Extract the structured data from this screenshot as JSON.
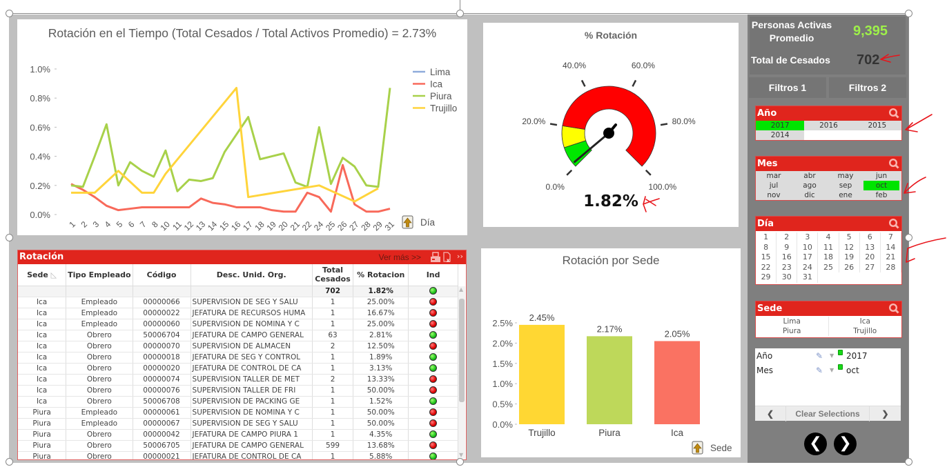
{
  "line_chart": {
    "title": "Rotación en el Tiempo (Total  Cesados / Total Activos Promedio) = 2.73%",
    "dimension_label": "Día",
    "colors": {
      "Lima": "#8eaadb",
      "Ica": "#f8695a",
      "Piura": "#a8d14a",
      "Trujillo": "#ffd43b"
    }
  },
  "gauge": {
    "title": "% Rotación",
    "value_label": "1.82%",
    "value_percent": 1.82,
    "tick_labels": [
      "0.0%",
      "20.0%",
      "40.0%",
      "60.0%",
      "80.0%",
      "100.0%"
    ],
    "bands": [
      {
        "from": 0,
        "to": 10,
        "color": "#00e800"
      },
      {
        "from": 10,
        "to": 20,
        "color": "#ffff00"
      },
      {
        "from": 20,
        "to": 100,
        "color": "#ff0000"
      }
    ]
  },
  "bar_chart": {
    "title": "Rotación por Sede",
    "dimension_label": "Sede",
    "colors": [
      "#ffd733",
      "#bed85a",
      "#fa7262"
    ]
  },
  "chart_data": [
    {
      "type": "line",
      "title": "Rotación en el Tiempo (Total  Cesados / Total Activos Promedio) = 2.73%",
      "xlabel": "Día",
      "ylabel": "",
      "ylim": [
        0,
        1.0
      ],
      "y_ticks": [
        "0.0%",
        "0.2%",
        "0.4%",
        "0.6%",
        "0.8%",
        "1.0%"
      ],
      "y_tick_values": [
        0,
        0.2,
        0.4,
        0.6,
        0.8,
        1.0
      ],
      "x": [
        "1",
        "2",
        "3",
        "4",
        "5",
        "6",
        "7",
        "8",
        "10",
        "11",
        "12",
        "13",
        "14",
        "15",
        "16",
        "17",
        "18",
        "19",
        "20",
        "21",
        "22",
        "24",
        "25",
        "26",
        "27",
        "28",
        "29",
        "31"
      ],
      "legend": [
        "Lima",
        "Ica",
        "Piura",
        "Trujillo"
      ],
      "legend_position": "top-right",
      "grid": false,
      "series": [
        {
          "name": "Lima",
          "values": [
            null,
            null,
            null,
            null,
            null,
            null,
            null,
            null,
            null,
            null,
            null,
            null,
            null,
            null,
            null,
            null,
            null,
            null,
            null,
            null,
            null,
            null,
            null,
            null,
            null,
            null,
            null,
            null
          ]
        },
        {
          "name": "Ica",
          "values": [
            0.21,
            0.17,
            0.12,
            0.06,
            0.03,
            0.04,
            0.05,
            0.05,
            0.05,
            0.05,
            0.05,
            0.11,
            0.08,
            0.07,
            0.05,
            0.05,
            0.05,
            0.03,
            0.02,
            0.02,
            0.15,
            0.12,
            0.02,
            0.34,
            0.07,
            0.02,
            0.02,
            0.04
          ]
        },
        {
          "name": "Piura",
          "values": [
            0.2,
            0.19,
            0.4,
            0.62,
            0.2,
            0.36,
            0.3,
            0.26,
            0.44,
            0.16,
            0.24,
            0.23,
            0.25,
            0.43,
            0.55,
            0.67,
            0.38,
            0.4,
            0.42,
            0.22,
            0.19,
            0.6,
            0.21,
            0.39,
            0.33,
            0.2,
            0.19,
            0.87
          ]
        },
        {
          "name": "Trujillo",
          "values": [
            0.15,
            0.15,
            0.15,
            null,
            0.3,
            null,
            0.15,
            0.15,
            0.28,
            null,
            null,
            null,
            null,
            null,
            0.87,
            0.12,
            null,
            null,
            null,
            null,
            null,
            0.2,
            null,
            null,
            0.09,
            null,
            0.18,
            null
          ]
        }
      ]
    },
    {
      "type": "bar",
      "title": "Rotación por Sede",
      "xlabel": "Sede",
      "ylabel": "",
      "categories": [
        "Trujillo",
        "Piura",
        "Ica"
      ],
      "values": [
        2.45,
        2.17,
        2.05
      ],
      "data_labels": [
        "2.45%",
        "2.17%",
        "2.05%"
      ],
      "ylim": [
        0,
        2.5
      ],
      "y_ticks": [
        "0.0%",
        "0.5%",
        "1.0%",
        "1.5%",
        "2.0%",
        "2.5%"
      ],
      "y_tick_values": [
        0,
        0.5,
        1.0,
        1.5,
        2.0,
        2.5
      ],
      "grid": false
    }
  ],
  "kpis": {
    "activos_label": "Personas Activas Promedio",
    "activos_value": "9,395",
    "cesados_label": "Total de Cesados",
    "cesados_value": "702"
  },
  "filter_tabs": [
    "Filtros 1",
    "Filtros 2"
  ],
  "listboxes": {
    "anio": {
      "title": "Año",
      "items": [
        {
          "label": "2017",
          "state": "selected"
        },
        {
          "label": "2016",
          "state": "excluded"
        },
        {
          "label": "2015",
          "state": "excluded"
        },
        {
          "label": "2014",
          "state": "excluded"
        }
      ]
    },
    "mes": {
      "title": "Mes",
      "items": [
        {
          "label": "mar",
          "state": "excluded"
        },
        {
          "label": "abr",
          "state": "excluded"
        },
        {
          "label": "may",
          "state": "excluded"
        },
        {
          "label": "jun",
          "state": "excluded"
        },
        {
          "label": "jul",
          "state": "excluded"
        },
        {
          "label": "ago",
          "state": "excluded"
        },
        {
          "label": "sep",
          "state": "excluded"
        },
        {
          "label": "oct",
          "state": "selected"
        },
        {
          "label": "nov",
          "state": "excluded"
        },
        {
          "label": "dic",
          "state": "excluded"
        },
        {
          "label": "ene",
          "state": "excluded"
        },
        {
          "label": "feb",
          "state": "excluded"
        }
      ]
    },
    "dia": {
      "title": "Día",
      "items": [
        "1",
        "2",
        "3",
        "4",
        "5",
        "6",
        "7",
        "8",
        "9",
        "10",
        "11",
        "12",
        "13",
        "14",
        "15",
        "16",
        "17",
        "18",
        "19",
        "20",
        "21",
        "22",
        "23",
        "24",
        "25",
        "26",
        "27",
        "28",
        "29",
        "30",
        "31"
      ]
    },
    "sede": {
      "title": "Sede",
      "items": [
        "Lima",
        "Ica",
        "Piura",
        "Trujillo"
      ]
    }
  },
  "current_selections": {
    "rows": [
      {
        "field": "Año",
        "value": "2017"
      },
      {
        "field": "Mes",
        "value": "oct"
      }
    ],
    "clear_label": "Clear Selections",
    "prev_glyph": "❮",
    "next_glyph": "❯"
  },
  "table": {
    "title": "Rotación",
    "more_label": "Ver más >>",
    "columns": [
      "Sede",
      "Tipo Empleado",
      "Código",
      "Desc. Unid. Org.",
      "Total Cesados",
      "% Rotacion",
      "Ind"
    ],
    "totals": {
      "total_cesados": "702",
      "rotacion": "1.82%",
      "ind": "green"
    },
    "rows": [
      [
        "Ica",
        "Empleado",
        "00000066",
        "SUPERVISION DE SEG Y SALU",
        "1",
        "25.00%",
        "red"
      ],
      [
        "Ica",
        "Empleado",
        "00000022",
        "JEFATURA DE RECURSOS HUMA",
        "1",
        "16.67%",
        "red"
      ],
      [
        "Ica",
        "Empleado",
        "00000060",
        "SUPERVISION DE NOMINA Y C",
        "1",
        "25.00%",
        "red"
      ],
      [
        "Ica",
        "Obrero",
        "50006704",
        "JEFATURA DE CAMPO GENERAL",
        "63",
        "2.81%",
        "green"
      ],
      [
        "Ica",
        "Obrero",
        "00000070",
        "SUPERVISION DE ALMACEN",
        "2",
        "12.50%",
        "red"
      ],
      [
        "Ica",
        "Obrero",
        "00000018",
        "JEFATURA DE SEG Y CONTROL",
        "1",
        "1.89%",
        "green"
      ],
      [
        "Ica",
        "Obrero",
        "00000020",
        "JEFATURA DE CONTROL DE CA",
        "1",
        "3.13%",
        "green"
      ],
      [
        "Ica",
        "Obrero",
        "00000074",
        "SUPERVISION TALLER DE MET",
        "2",
        "13.33%",
        "red"
      ],
      [
        "Ica",
        "Obrero",
        "00000076",
        "SUPERVISION TALLER DE FRI",
        "1",
        "50.00%",
        "red"
      ],
      [
        "Ica",
        "Obrero",
        "50006708",
        "SUPERVISION DE PACKING GE",
        "1",
        "1.52%",
        "green"
      ],
      [
        "Piura",
        "Empleado",
        "00000061",
        "SUPERVISION DE NOMINA Y C",
        "1",
        "50.00%",
        "red"
      ],
      [
        "Piura",
        "Empleado",
        "00000067",
        "SUPERVISION DE SEG Y SALU",
        "1",
        "50.00%",
        "red"
      ],
      [
        "Piura",
        "Obrero",
        "00000042",
        "JEFATURA DE CAMPO PIURA 1",
        "1",
        "4.35%",
        "green"
      ],
      [
        "Piura",
        "Obrero",
        "50006705",
        "JEFATURA DE CAMPO GENERAL",
        "599",
        "13.68%",
        "red"
      ],
      [
        "Piura",
        "Obrero",
        "00000021",
        "JEFATURA DE CONTROL DE CA",
        "1",
        "5.88%",
        "green"
      ]
    ]
  }
}
